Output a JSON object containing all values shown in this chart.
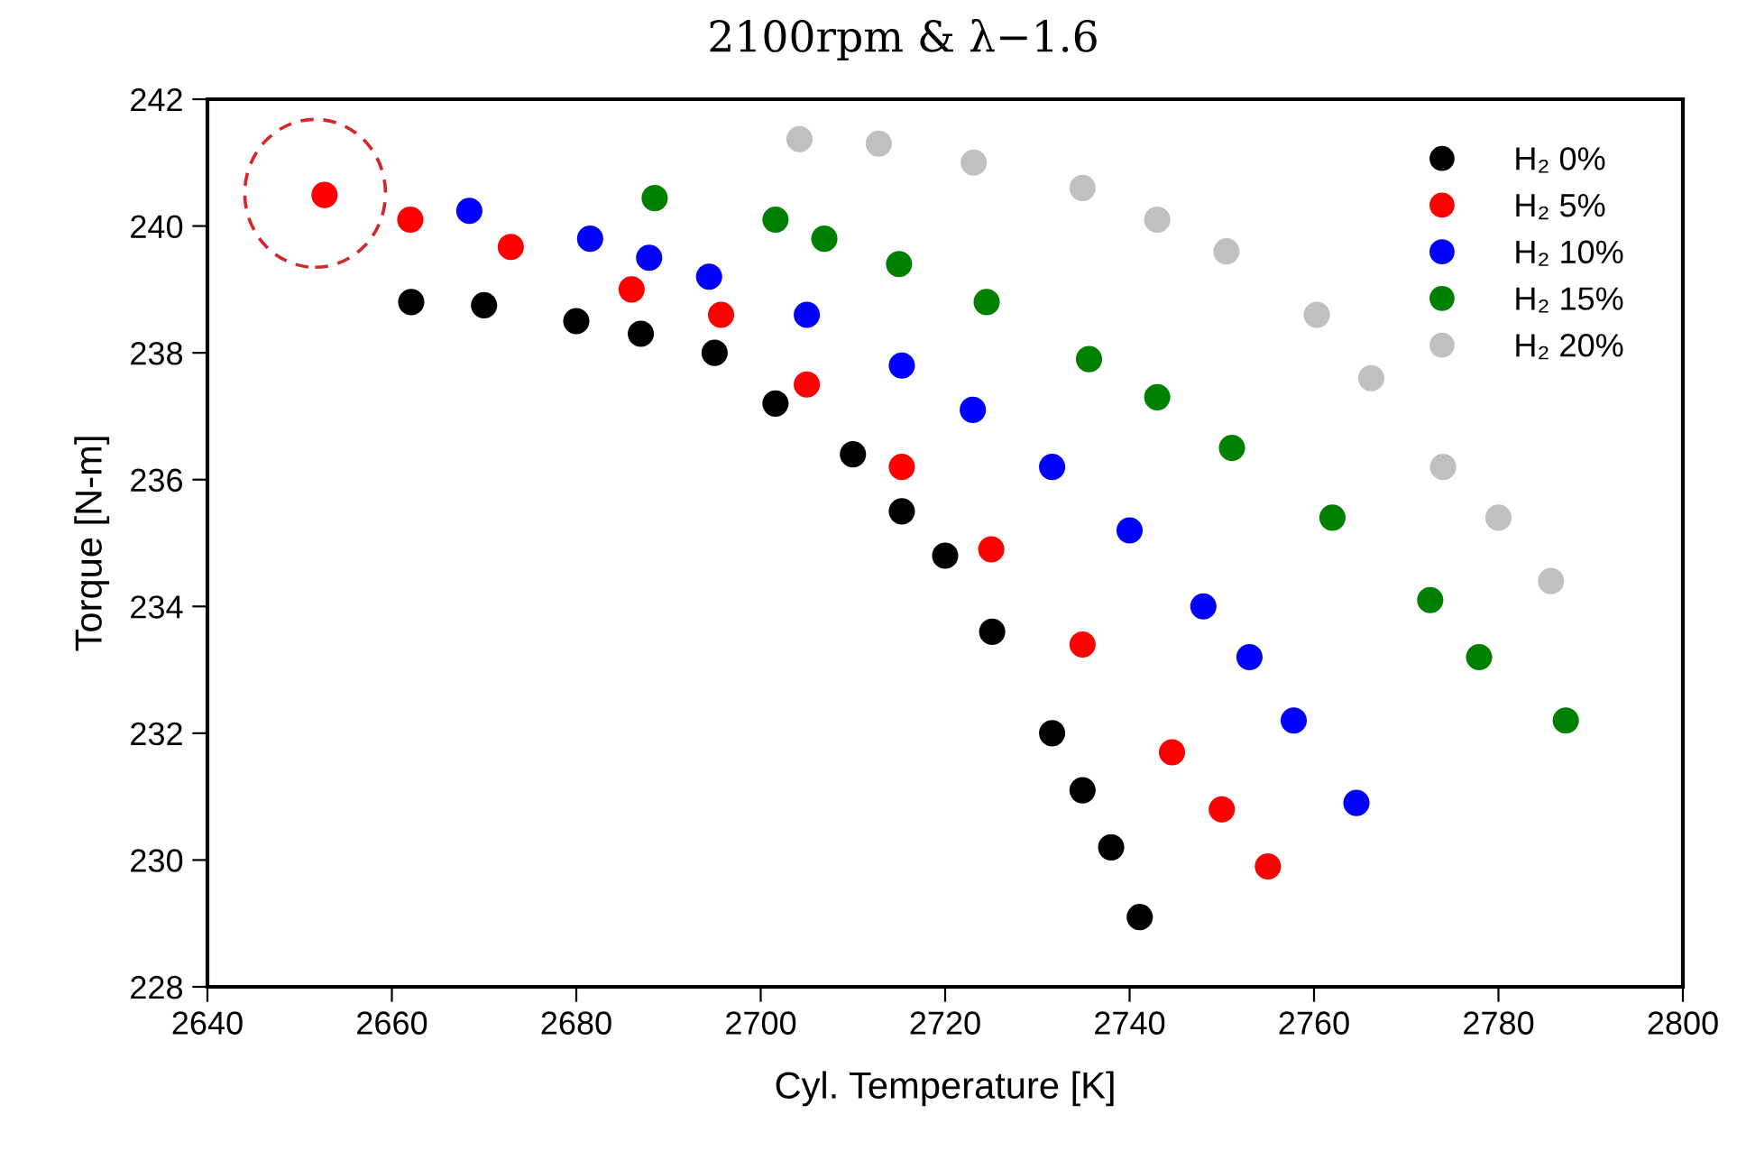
{
  "chart_data": {
    "type": "scatter",
    "title": "2100rpm & λ−1.6",
    "xlabel": "Cyl. Temperature [K]",
    "ylabel": "Torque [N-m]",
    "xlim": [
      2640,
      2800
    ],
    "xticks": [
      2640,
      2660,
      2680,
      2700,
      2720,
      2740,
      2760,
      2780,
      2800
    ],
    "ylim": [
      228,
      242
    ],
    "yticks": [
      228,
      230,
      232,
      234,
      236,
      238,
      240,
      242
    ],
    "grid": false,
    "legend": "top right",
    "marker": "circle",
    "series": [
      {
        "name": "H₂ 0%",
        "color": "#000000",
        "x": [
          2662.1,
          2670,
          2680,
          2687,
          2695,
          2701.6,
          2710,
          2715.3,
          2720,
          2725.1,
          2731.6,
          2734.9,
          2738,
          2741.1
        ],
        "values": [
          238.8,
          238.75,
          238.5,
          238.3,
          238.0,
          237.2,
          236.4,
          235.5,
          234.8,
          233.6,
          232.0,
          231.1,
          230.2,
          229.1
        ]
      },
      {
        "name": "H₂ 5%",
        "color": "#ff0000",
        "x": [
          2652.7,
          2662,
          2672.9,
          2686,
          2695.7,
          2705,
          2715.3,
          2725,
          2734.9,
          2744.6,
          2750,
          2755.0
        ],
        "values": [
          240.49,
          240.1,
          239.67,
          239.0,
          238.6,
          237.5,
          236.2,
          234.9,
          233.4,
          231.7,
          230.8,
          229.9
        ]
      },
      {
        "name": "H₂ 10%",
        "color": "#0000ff",
        "x": [
          2668.4,
          2681.5,
          2687.9,
          2694.4,
          2705,
          2715.3,
          2723,
          2731.6,
          2740,
          2748,
          2753,
          2757.8,
          2764.6
        ],
        "values": [
          240.24,
          239.8,
          239.5,
          239.2,
          238.6,
          237.8,
          237.1,
          236.2,
          235.2,
          234.0,
          233.2,
          232.2,
          230.9
        ]
      },
      {
        "name": "H₂ 15%",
        "color": "#008000",
        "x": [
          2688.5,
          2701.6,
          2706.9,
          2715,
          2724.5,
          2735.6,
          2743,
          2751.1,
          2762,
          2772.6,
          2777.9,
          2787.3
        ],
        "values": [
          240.44,
          240.1,
          239.8,
          239.4,
          238.8,
          237.9,
          237.3,
          236.5,
          235.4,
          234.1,
          233.2,
          232.2
        ]
      },
      {
        "name": "H₂ 20%",
        "color": "#c0c0c0",
        "x": [
          2704.2,
          2712.8,
          2723.1,
          2734.9,
          2743,
          2750.5,
          2760.3,
          2766.2,
          2774,
          2780,
          2785.7
        ],
        "values": [
          241.37,
          241.3,
          241.0,
          240.6,
          240.1,
          239.6,
          238.6,
          237.6,
          236.2,
          235.4,
          234.4
        ]
      }
    ]
  }
}
